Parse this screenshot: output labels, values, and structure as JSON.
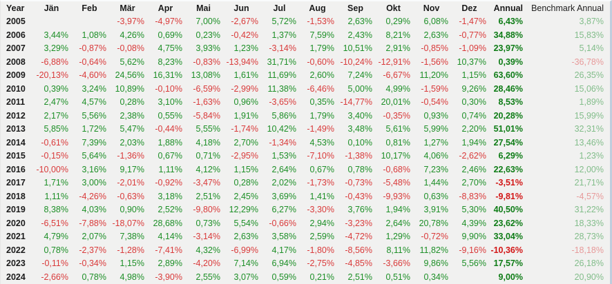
{
  "colors": {
    "positive": "#1d8f27",
    "negative": "#d93a3a",
    "annual_positive": "#0e7c16",
    "annual_negative": "#d21616",
    "benchmark_positive": "#82bd8a",
    "benchmark_negative": "#e79a9a",
    "text": "#1b1b1b",
    "background": "#f1f1f0",
    "window_edge": "#c0cddd"
  },
  "table": {
    "columns": [
      "Year",
      "Jän",
      "Feb",
      "Mär",
      "Apr",
      "Mai",
      "Jun",
      "Jul",
      "Aug",
      "Sep",
      "Okt",
      "Nov",
      "Dez",
      "Annual",
      "Benchmark Annual"
    ],
    "rows": [
      {
        "year": "2005",
        "months": [
          "",
          "",
          "-3,97%",
          "-4,97%",
          "7,00%",
          "-2,67%",
          "5,72%",
          "-1,53%",
          "2,63%",
          "0,29%",
          "6,08%",
          "-1,47%"
        ],
        "annual": "6,43%",
        "benchmark": "3,87%"
      },
      {
        "year": "2006",
        "months": [
          "3,44%",
          "1,08%",
          "4,26%",
          "0,69%",
          "0,23%",
          "-0,42%",
          "1,37%",
          "7,59%",
          "2,43%",
          "8,21%",
          "2,63%",
          "-0,77%"
        ],
        "annual": "34,88%",
        "benchmark": "15,83%"
      },
      {
        "year": "2007",
        "months": [
          "3,29%",
          "-0,87%",
          "-0,08%",
          "4,75%",
          "3,93%",
          "1,23%",
          "-3,14%",
          "1,79%",
          "10,51%",
          "2,91%",
          "-0,85%",
          "-1,09%"
        ],
        "annual": "23,97%",
        "benchmark": "5,14%"
      },
      {
        "year": "2008",
        "months": [
          "-6,88%",
          "-0,64%",
          "5,62%",
          "8,23%",
          "-0,83%",
          "-13,94%",
          "31,71%",
          "-0,60%",
          "-10,24%",
          "-12,91%",
          "-1,56%",
          "10,37%"
        ],
        "annual": "0,39%",
        "benchmark": "-36,78%"
      },
      {
        "year": "2009",
        "months": [
          "-20,13%",
          "-4,60%",
          "24,56%",
          "16,31%",
          "13,08%",
          "1,61%",
          "11,69%",
          "2,60%",
          "7,24%",
          "-6,67%",
          "11,20%",
          "1,15%"
        ],
        "annual": "63,60%",
        "benchmark": "26,35%"
      },
      {
        "year": "2010",
        "months": [
          "0,39%",
          "3,24%",
          "10,89%",
          "-0,10%",
          "-6,59%",
          "-2,99%",
          "11,38%",
          "-6,46%",
          "5,00%",
          "4,99%",
          "-1,59%",
          "9,26%"
        ],
        "annual": "28,46%",
        "benchmark": "15,06%"
      },
      {
        "year": "2011",
        "months": [
          "2,47%",
          "4,57%",
          "0,28%",
          "3,10%",
          "-1,63%",
          "0,96%",
          "-3,65%",
          "0,35%",
          "-14,77%",
          "20,01%",
          "-0,54%",
          "0,30%"
        ],
        "annual": "8,53%",
        "benchmark": "1,89%"
      },
      {
        "year": "2012",
        "months": [
          "2,17%",
          "5,56%",
          "2,38%",
          "0,55%",
          "-5,84%",
          "1,91%",
          "5,86%",
          "1,79%",
          "3,40%",
          "-0,35%",
          "0,93%",
          "0,74%"
        ],
        "annual": "20,28%",
        "benchmark": "15,99%"
      },
      {
        "year": "2013",
        "months": [
          "5,85%",
          "1,72%",
          "5,47%",
          "-0,44%",
          "5,55%",
          "-1,74%",
          "10,42%",
          "-1,49%",
          "3,48%",
          "5,61%",
          "5,99%",
          "2,20%"
        ],
        "annual": "51,01%",
        "benchmark": "32,31%"
      },
      {
        "year": "2014",
        "months": [
          "-0,61%",
          "7,39%",
          "2,03%",
          "1,88%",
          "4,18%",
          "2,70%",
          "-1,34%",
          "4,53%",
          "0,10%",
          "0,81%",
          "1,27%",
          "1,94%"
        ],
        "annual": "27,54%",
        "benchmark": "13,46%"
      },
      {
        "year": "2015",
        "months": [
          "-0,15%",
          "5,64%",
          "-1,36%",
          "0,67%",
          "0,71%",
          "-2,95%",
          "1,53%",
          "-7,10%",
          "-1,38%",
          "10,17%",
          "4,06%",
          "-2,62%"
        ],
        "annual": "6,29%",
        "benchmark": "1,23%"
      },
      {
        "year": "2016",
        "months": [
          "-10,00%",
          "3,16%",
          "9,17%",
          "1,11%",
          "4,12%",
          "1,15%",
          "2,64%",
          "0,67%",
          "0,78%",
          "-0,68%",
          "7,23%",
          "2,46%"
        ],
        "annual": "22,63%",
        "benchmark": "12,00%"
      },
      {
        "year": "2017",
        "months": [
          "1,71%",
          "3,00%",
          "-2,01%",
          "-0,92%",
          "-3,47%",
          "0,28%",
          "2,02%",
          "-1,73%",
          "-0,73%",
          "-5,48%",
          "1,44%",
          "2,70%"
        ],
        "annual": "-3,51%",
        "benchmark": "21,71%"
      },
      {
        "year": "2018",
        "months": [
          "1,11%",
          "-4,26%",
          "-0,63%",
          "3,18%",
          "2,51%",
          "2,45%",
          "3,69%",
          "1,41%",
          "-0,43%",
          "-9,93%",
          "0,63%",
          "-8,83%"
        ],
        "annual": "-9,81%",
        "benchmark": "-4,57%"
      },
      {
        "year": "2019",
        "months": [
          "8,38%",
          "4,03%",
          "0,90%",
          "2,52%",
          "-9,80%",
          "12,29%",
          "6,27%",
          "-3,30%",
          "3,76%",
          "1,94%",
          "3,91%",
          "5,30%"
        ],
        "annual": "40,50%",
        "benchmark": "31,22%"
      },
      {
        "year": "2020",
        "months": [
          "-6,51%",
          "-7,88%",
          "-18,07%",
          "28,68%",
          "0,73%",
          "5,54%",
          "-0,66%",
          "2,94%",
          "-3,23%",
          "2,64%",
          "20,78%",
          "4,39%"
        ],
        "annual": "23,62%",
        "benchmark": "18,33%"
      },
      {
        "year": "2021",
        "months": [
          "4,79%",
          "2,07%",
          "7,38%",
          "4,14%",
          "-3,14%",
          "2,63%",
          "3,58%",
          "2,59%",
          "-4,72%",
          "1,29%",
          "-0,72%",
          "9,90%"
        ],
        "annual": "33,04%",
        "benchmark": "28,73%"
      },
      {
        "year": "2022",
        "months": [
          "0,78%",
          "-2,37%",
          "-1,28%",
          "-7,41%",
          "4,32%",
          "-6,99%",
          "4,17%",
          "-1,80%",
          "-8,56%",
          "8,11%",
          "11,82%",
          "-9,16%"
        ],
        "annual": "-10,36%",
        "benchmark": "-18,18%"
      },
      {
        "year": "2023",
        "months": [
          "-0,11%",
          "-0,34%",
          "1,15%",
          "2,89%",
          "-4,20%",
          "7,14%",
          "6,94%",
          "-2,75%",
          "-4,85%",
          "-3,66%",
          "9,86%",
          "5,56%"
        ],
        "annual": "17,57%",
        "benchmark": "26,18%"
      },
      {
        "year": "2024",
        "months": [
          "-2,66%",
          "0,78%",
          "4,98%",
          "-3,90%",
          "2,55%",
          "3,07%",
          "0,59%",
          "0,21%",
          "2,51%",
          "0,51%",
          "0,34%",
          ""
        ],
        "annual": "9,00%",
        "benchmark": "20,90%"
      }
    ]
  }
}
